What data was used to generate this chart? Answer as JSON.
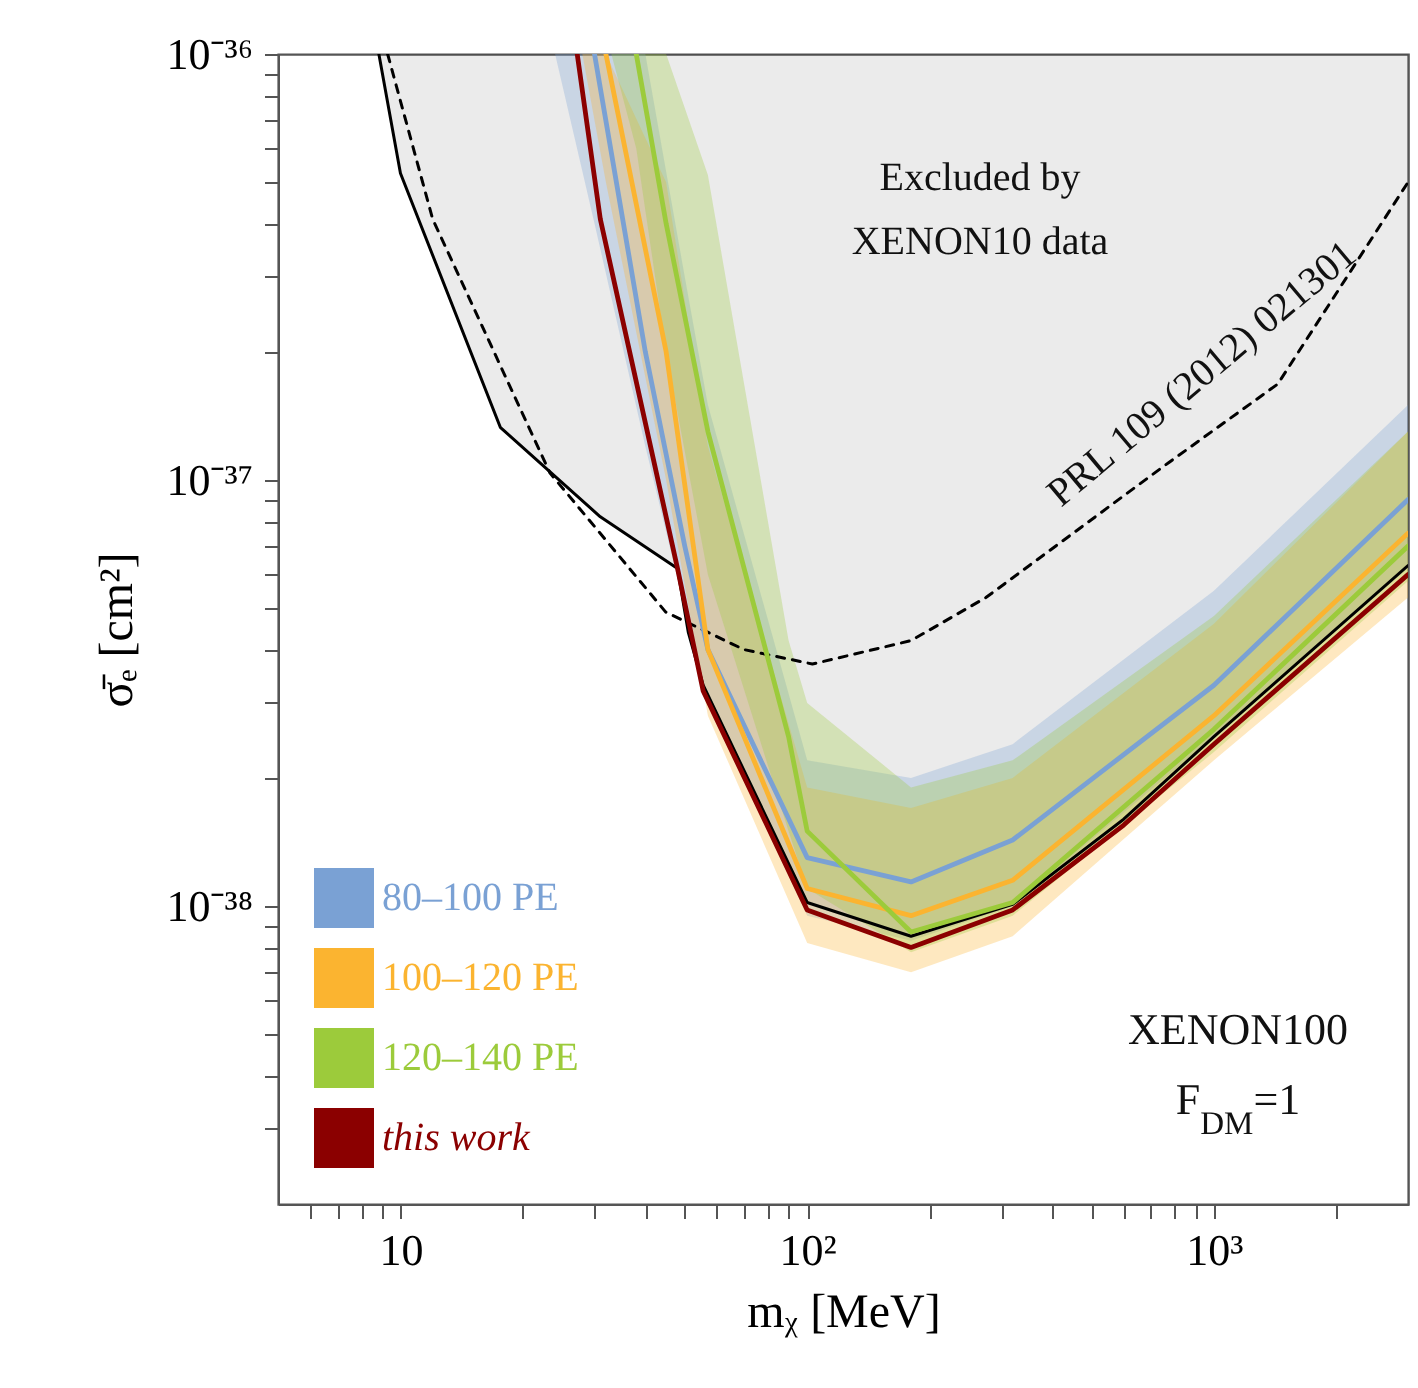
{
  "chart_data": {
    "type": "line",
    "xlabel": "mᵪ [MeV]",
    "ylabel": "σ̄ₑ [cm²]",
    "log": "xy",
    "xlim": [
      5,
      3000
    ],
    "ylim": [
      2e-39,
      1e-36
    ],
    "xticks": [
      {
        "value": 6,
        "label": null
      },
      {
        "value": 7,
        "label": null
      },
      {
        "value": 8,
        "label": null
      },
      {
        "value": 9,
        "label": null
      },
      {
        "value": 10,
        "label": "10"
      },
      {
        "value": 20,
        "label": null
      },
      {
        "value": 30,
        "label": null
      },
      {
        "value": 40,
        "label": null
      },
      {
        "value": 50,
        "label": null
      },
      {
        "value": 60,
        "label": null
      },
      {
        "value": 70,
        "label": null
      },
      {
        "value": 80,
        "label": null
      },
      {
        "value": 90,
        "label": null
      },
      {
        "value": 100,
        "label": "10²"
      },
      {
        "value": 200,
        "label": null
      },
      {
        "value": 300,
        "label": null
      },
      {
        "value": 400,
        "label": null
      },
      {
        "value": 500,
        "label": null
      },
      {
        "value": 600,
        "label": null
      },
      {
        "value": 700,
        "label": null
      },
      {
        "value": 800,
        "label": null
      },
      {
        "value": 900,
        "label": null
      },
      {
        "value": 1000,
        "label": "10³"
      },
      {
        "value": 2000,
        "label": null
      }
    ],
    "yticks": [
      {
        "value": 3e-39,
        "label": null
      },
      {
        "value": 4e-39,
        "label": null
      },
      {
        "value": 5e-39,
        "label": null
      },
      {
        "value": 6e-39,
        "label": null
      },
      {
        "value": 7e-39,
        "label": null
      },
      {
        "value": 8e-39,
        "label": null
      },
      {
        "value": 9e-39,
        "label": null
      },
      {
        "value": 1e-38,
        "label": "10⁻³⁸"
      },
      {
        "value": 2e-38,
        "label": null
      },
      {
        "value": 3e-38,
        "label": null
      },
      {
        "value": 4e-38,
        "label": null
      },
      {
        "value": 5e-38,
        "label": null
      },
      {
        "value": 6e-38,
        "label": null
      },
      {
        "value": 7e-38,
        "label": null
      },
      {
        "value": 8e-38,
        "label": null
      },
      {
        "value": 9e-38,
        "label": null
      },
      {
        "value": 1e-37,
        "label": "10⁻³⁷"
      },
      {
        "value": 2e-37,
        "label": null
      },
      {
        "value": 3e-37,
        "label": null
      },
      {
        "value": 4e-37,
        "label": null
      },
      {
        "value": 5e-37,
        "label": null
      },
      {
        "value": 6e-37,
        "label": null
      },
      {
        "value": 7e-37,
        "label": null
      },
      {
        "value": 8e-37,
        "label": null
      },
      {
        "value": 9e-37,
        "label": null
      },
      {
        "value": 1e-36,
        "label": "10⁻³⁶"
      }
    ],
    "legend": "bottom left",
    "grid": false,
    "marker": "none",
    "series": [
      {
        "color": "#000000",
        "x": [
          8.85,
          10,
          17.6,
          31,
          48,
          51,
          55.5,
          100,
          180,
          320,
          600,
          1000,
          3000
        ],
        "values": [
          1e-36,
          5.25e-37,
          1.33e-37,
          8.2e-38,
          6.2e-38,
          4.4e-38,
          3.3e-38,
          1.02e-38,
          8.5e-39,
          1.01e-38,
          1.6e-38,
          2.5e-38,
          6.3e-38
        ],
        "lower": [
          1e-36,
          5.25e-37,
          1.33e-37,
          8.2e-38,
          6.2e-38,
          4.4e-38,
          3.3e-38,
          1.02e-38,
          8.5e-39,
          1.01e-38,
          1.6e-38,
          2.5e-38,
          6.3e-38
        ],
        "upper": [
          1e-36,
          1e-36,
          1e-36,
          1e-36,
          1e-36,
          1e-36,
          1e-36,
          1e-36,
          1e-36,
          1e-36,
          1e-36,
          1e-36,
          1e-36
        ]
      },
      {
        "color": "#000000",
        "line_style": "dashed",
        "x": [
          9.3,
          12,
          23.3,
          44.9,
          70,
          103,
          180,
          275,
          775,
          1435,
          3000
        ],
        "values": [
          1e-36,
          4.1e-37,
          1.04e-37,
          4.9e-38,
          4e-38,
          3.7e-38,
          4.2e-38,
          5.3e-38,
          1.1e-37,
          1.68e-37,
          5e-37
        ]
      },
      {
        "name": "80–100 PE",
        "color": "#7aa1d4",
        "x": [
          24,
          30,
          40,
          50,
          57,
          100,
          180,
          320,
          1000,
          3000
        ],
        "values": [
          null,
          1e-36,
          2e-37,
          7e-38,
          4e-38,
          1.3e-38,
          1.14e-38,
          1.43e-38,
          3.3e-38,
          9e-38
        ],
        "lower": [
          1e-36,
          4e-37,
          1.2e-37,
          5e-38,
          3e-38,
          9.5e-39,
          8.3e-39,
          1e-38,
          2.5e-38,
          6.2e-38
        ],
        "upper": [
          1e-36,
          1e-36,
          1e-36,
          3e-37,
          1.5e-37,
          2.2e-38,
          2e-38,
          2.4e-38,
          5.5e-38,
          1.5e-37
        ]
      },
      {
        "name": "100–120 PE",
        "color": "#fbb430",
        "x": [
          28,
          32,
          45,
          57,
          100,
          180,
          320,
          1000,
          3000
        ],
        "values": [
          null,
          1e-36,
          2e-37,
          4e-38,
          1.1e-38,
          9.5e-39,
          1.15e-38,
          2.8e-38,
          7.5e-38
        ],
        "lower": [
          1e-36,
          5e-37,
          1e-37,
          2.8e-38,
          8.2e-39,
          7e-39,
          8.5e-39,
          2.2e-38,
          5.3e-38
        ],
        "upper": [
          1e-36,
          1e-36,
          5e-37,
          1.2e-37,
          1.9e-38,
          1.7e-38,
          2e-38,
          4.6e-38,
          1.3e-37
        ]
      },
      {
        "name": "120–140 PE",
        "color": "#9ccb3b",
        "x": [
          33,
          38,
          45,
          57,
          90,
          100,
          180,
          320,
          1000,
          3000
        ],
        "values": [
          null,
          1e-36,
          4e-37,
          1.3e-37,
          2.5e-38,
          1.5e-38,
          8.7e-39,
          1.02e-38,
          2.6e-38,
          7e-38
        ],
        "lower": [
          1e-36,
          6e-37,
          2e-37,
          6e-38,
          1.5e-38,
          1.1e-38,
          7.8e-39,
          9.5e-39,
          2.3e-38,
          5.8e-38
        ],
        "upper": [
          1e-36,
          1e-36,
          1e-36,
          5.2e-37,
          4.2e-38,
          3e-38,
          1.9e-38,
          2.2e-38,
          4.8e-38,
          1.3e-37
        ]
      },
      {
        "name": "this work",
        "color": "#8b0000",
        "x": [
          27.2,
          31,
          48,
          55.5,
          100,
          180,
          320,
          600,
          1000,
          3000
        ],
        "values": [
          1e-36,
          4.1e-37,
          6.2e-38,
          3.2e-38,
          9.8e-39,
          8e-39,
          9.8e-39,
          1.55e-38,
          2.4e-38,
          6e-38
        ]
      }
    ],
    "annotations": [
      "Excluded by\nXENON10 data",
      "PRL 109 (2012) 021301",
      "XENON100\nF$_{DM}$=1"
    ]
  }
}
